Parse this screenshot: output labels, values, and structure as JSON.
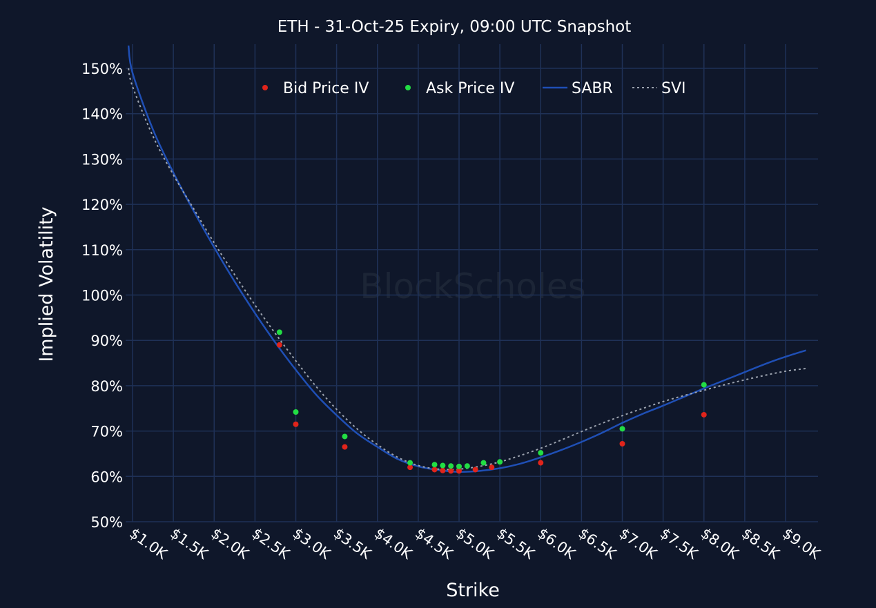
{
  "chart_data": {
    "type": "scatter",
    "title": "ETH - 31-Oct-25 Expiry, 09:00 UTC Snapshot",
    "xlabel": "Strike",
    "ylabel": "Implied Volatility",
    "xlim": [
      950,
      9200
    ],
    "ylim": [
      50,
      155
    ],
    "x_ticks": [
      1000,
      1500,
      2000,
      2500,
      3000,
      3500,
      4000,
      4500,
      5000,
      5500,
      6000,
      6500,
      7000,
      7500,
      8000,
      8500,
      9000
    ],
    "x_tick_labels": [
      "$1.0K",
      "$1.5K",
      "$2.0K",
      "$2.5K",
      "$3.0K",
      "$3.5K",
      "$4.0K",
      "$4.5K",
      "$5.0K",
      "$5.5K",
      "$6.0K",
      "$6.5K",
      "$7.0K",
      "$7.5K",
      "$8.0K",
      "$8.5K",
      "$9.0K"
    ],
    "y_ticks": [
      50,
      60,
      70,
      80,
      90,
      100,
      110,
      120,
      130,
      140,
      150
    ],
    "y_tick_labels": [
      "50%",
      "60%",
      "70%",
      "80%",
      "90%",
      "100%",
      "110%",
      "120%",
      "130%",
      "140%",
      "150%"
    ],
    "grid": true,
    "legend_position": "top-center",
    "watermark": "BlockScholes",
    "series": [
      {
        "name": "Bid Price IV",
        "kind": "markers",
        "color": "#e0241b",
        "x": [
          2800,
          3000,
          3600,
          4400,
          4700,
          4800,
          4900,
          5000,
          5200,
          5400,
          6000,
          7000,
          8000
        ],
        "y": [
          89,
          71.5,
          66.5,
          62,
          61.5,
          61.3,
          61.2,
          61.2,
          61.5,
          62,
          63,
          67.2,
          73.6
        ]
      },
      {
        "name": "Ask Price IV",
        "kind": "markers",
        "color": "#22dd44",
        "x": [
          2800,
          3000,
          3600,
          4400,
          4700,
          4800,
          4900,
          5000,
          5100,
          5300,
          5500,
          6000,
          7000,
          8000
        ],
        "y": [
          91.8,
          74.2,
          68.8,
          63,
          62.6,
          62.4,
          62.3,
          62.2,
          62.3,
          63,
          63.2,
          65.2,
          70.5,
          80.2
        ]
      },
      {
        "name": "SABR",
        "kind": "line",
        "color": "#1f4fb5",
        "x": [
          950,
          1000,
          1250,
          1500,
          1750,
          2000,
          2250,
          2500,
          2750,
          3000,
          3250,
          3500,
          3750,
          4000,
          4250,
          4500,
          4750,
          5000,
          5250,
          5500,
          5750,
          6000,
          6250,
          6500,
          6750,
          7000,
          7250,
          7500,
          7750,
          8000,
          8250,
          8500,
          8750,
          9000,
          9250
        ],
        "y": [
          155,
          149,
          136.5,
          127,
          118.5,
          110.5,
          103,
          96,
          89.5,
          83.5,
          78,
          73.5,
          69.5,
          66.5,
          63.8,
          62.2,
          61.4,
          61,
          61.2,
          61.8,
          62.8,
          64.2,
          65.8,
          67.6,
          69.6,
          71.8,
          73.8,
          75.6,
          77.5,
          79.4,
          81.2,
          83,
          84.8,
          86.4,
          87.8
        ]
      },
      {
        "name": "SVI",
        "kind": "line",
        "dash": "dotted",
        "color": "#9ca3af",
        "x": [
          950,
          1000,
          1250,
          1500,
          1750,
          2000,
          2250,
          2500,
          2750,
          3000,
          3250,
          3500,
          3750,
          4000,
          4250,
          4500,
          4750,
          5000,
          5250,
          5500,
          5750,
          6000,
          6250,
          6500,
          6750,
          7000,
          7250,
          7500,
          7750,
          8000,
          8250,
          8500,
          8750,
          9000,
          9250
        ],
        "y": [
          150,
          146,
          135,
          126.5,
          119,
          111.5,
          104.5,
          97.8,
          91.5,
          85.5,
          79.8,
          74.8,
          70.5,
          67,
          64.2,
          62.4,
          61.6,
          61.6,
          62.2,
          63.2,
          64.6,
          66.2,
          68,
          69.9,
          71.7,
          73.4,
          75,
          76.5,
          77.8,
          79,
          80.2,
          81.3,
          82.3,
          83.2,
          83.8
        ]
      }
    ]
  }
}
